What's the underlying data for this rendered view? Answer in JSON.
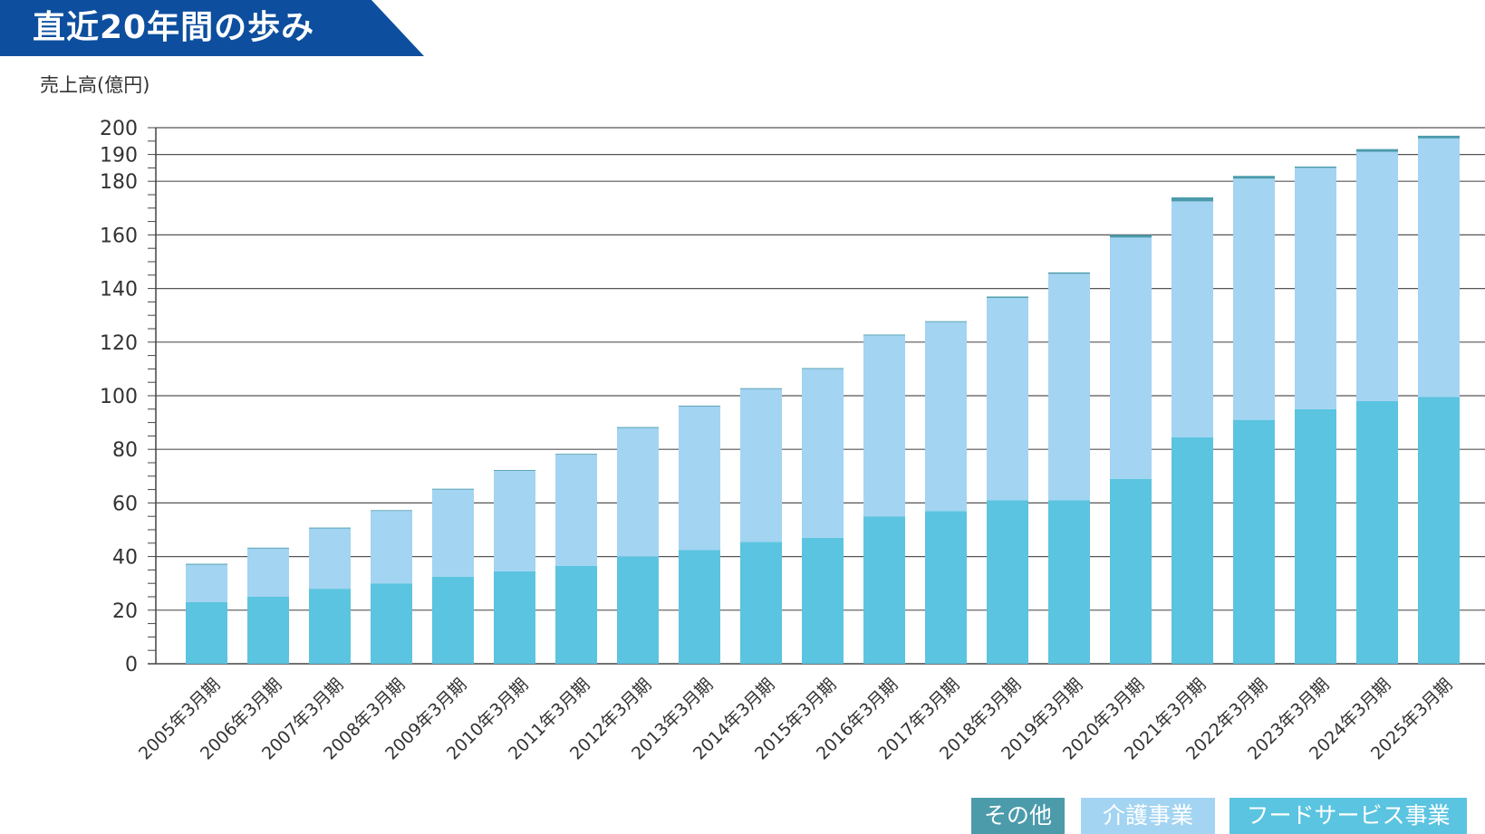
{
  "header": {
    "title": "直近20年間の歩み",
    "banner_color": "#0d4f9e"
  },
  "chart_data": {
    "type": "bar",
    "stacked": true,
    "ylabel": "売上高(億円)",
    "ylim": [
      0,
      200
    ],
    "yticks": [
      0,
      20,
      40,
      60,
      80,
      100,
      120,
      140,
      160,
      180,
      190,
      200
    ],
    "grid": true,
    "legend_position": "bottom-right",
    "categories": [
      "2005年3月期",
      "2006年3月期",
      "2007年3月期",
      "2008年3月期",
      "2009年3月期",
      "2010年3月期",
      "2011年3月期",
      "2012年3月期",
      "2013年3月期",
      "2014年3月期",
      "2015年3月期",
      "2016年3月期",
      "2017年3月期",
      "2018年3月期",
      "2019年3月期",
      "2020年3月期",
      "2021年3月期",
      "2022年3月期",
      "2023年3月期",
      "2024年3月期",
      "2025年3月期"
    ],
    "series": [
      {
        "name": "フードサービス事業",
        "color": "#5bc4e0",
        "values": [
          23,
          25,
          28,
          30,
          32.5,
          34.5,
          36.5,
          40,
          42.5,
          45.5,
          47,
          55,
          57,
          61,
          61,
          69,
          84.5,
          91,
          95,
          98,
          99.5
        ]
      },
      {
        "name": "介護事業",
        "color": "#a3d4f2",
        "values": [
          14,
          18,
          22.5,
          27,
          32.5,
          37.5,
          41.5,
          48,
          53.5,
          57,
          63,
          67.5,
          70.5,
          75.5,
          84.5,
          90,
          88,
          90,
          90,
          93,
          96.5
        ]
      },
      {
        "name": "その他",
        "color": "#4b9bab",
        "values": [
          0.3,
          0.3,
          0.3,
          0.3,
          0.3,
          0.3,
          0.3,
          0.3,
          0.3,
          0.3,
          0.3,
          0.3,
          0.3,
          0.5,
          0.5,
          1,
          1.5,
          1,
          0.5,
          1,
          1
        ]
      }
    ]
  }
}
